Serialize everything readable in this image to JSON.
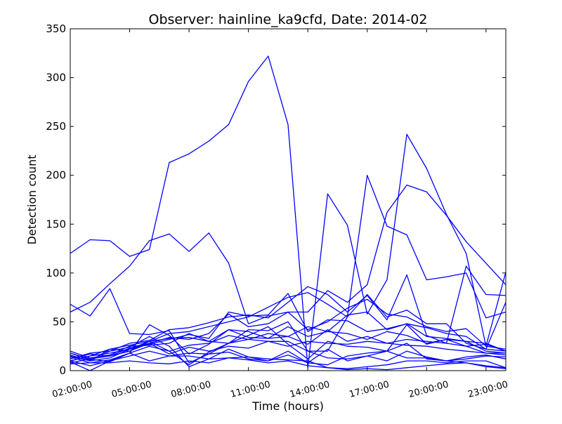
{
  "chart_data": {
    "type": "line",
    "title": "Observer: hainline_ka9cfd, Date: 2014-02",
    "xlabel": "Time (hours)",
    "ylabel": "Detection count",
    "x_tick_labels": [
      "02:00:00",
      "05:00:00",
      "08:00:00",
      "11:00:00",
      "14:00:00",
      "17:00:00",
      "20:00:00",
      "23:00:00"
    ],
    "x_tick_values": [
      2,
      5,
      8,
      11,
      14,
      17,
      20,
      23
    ],
    "xlim": [
      2,
      24
    ],
    "ylim": [
      0,
      350
    ],
    "y_ticks": [
      0,
      50,
      100,
      150,
      200,
      250,
      300,
      350
    ],
    "x": [
      2,
      3,
      4,
      5,
      6,
      7,
      8,
      9,
      10,
      11,
      12,
      13,
      14,
      15,
      16,
      17,
      18,
      19,
      20,
      21,
      22,
      23,
      24
    ],
    "series_color": "#0000ff",
    "series": [
      {
        "values": [
          120,
          134,
          133,
          117,
          124,
          213,
          222,
          235,
          252,
          296,
          322,
          252,
          3,
          181,
          149,
          58,
          93,
          242,
          207,
          160,
          120,
          25,
          101
        ]
      },
      {
        "values": [
          60,
          70,
          89,
          107,
          133,
          140,
          122,
          141,
          110,
          48,
          56,
          60,
          60,
          82,
          70,
          88,
          162,
          190,
          183,
          159,
          132,
          110,
          88
        ]
      },
      {
        "values": [
          68,
          56,
          84,
          38,
          37,
          41,
          8,
          17,
          28,
          42,
          41,
          50,
          20,
          20,
          55,
          200,
          148,
          139,
          93,
          96,
          100,
          54,
          60
        ]
      },
      {
        "values": [
          18,
          11,
          20,
          28,
          31,
          42,
          44,
          49,
          55,
          57,
          54,
          70,
          86,
          78,
          60,
          77,
          52,
          98,
          36,
          28,
          107,
          78,
          77
        ]
      },
      {
        "values": [
          15,
          10,
          22,
          26,
          30,
          38,
          40,
          45,
          50,
          55,
          65,
          75,
          80,
          68,
          55,
          78,
          55,
          62,
          48,
          48,
          28,
          22,
          70
        ]
      },
      {
        "values": [
          12,
          17,
          15,
          23,
          28,
          34,
          32,
          38,
          58,
          45,
          48,
          60,
          42,
          50,
          64,
          73,
          58,
          55,
          45,
          40,
          43,
          25,
          22
        ]
      },
      {
        "values": [
          10,
          15,
          18,
          22,
          27,
          32,
          37,
          33,
          60,
          56,
          57,
          79,
          40,
          52,
          51,
          40,
          43,
          48,
          44,
          38,
          35,
          22,
          20
        ]
      },
      {
        "values": [
          8,
          12,
          15,
          20,
          30,
          33,
          34,
          30,
          42,
          34,
          33,
          45,
          35,
          40,
          57,
          60,
          42,
          48,
          35,
          33,
          30,
          20,
          18
        ]
      },
      {
        "values": [
          14,
          8,
          11,
          18,
          47,
          36,
          17,
          27,
          42,
          40,
          33,
          35,
          27,
          42,
          30,
          35,
          28,
          32,
          30,
          28,
          25,
          18,
          18
        ]
      },
      {
        "values": [
          18,
          12,
          9,
          18,
          25,
          20,
          26,
          28,
          36,
          32,
          38,
          35,
          45,
          40,
          38,
          32,
          40,
          36,
          28,
          32,
          30,
          28,
          20
        ]
      },
      {
        "values": [
          20,
          13,
          16,
          25,
          26,
          28,
          38,
          30,
          28,
          32,
          30,
          25,
          30,
          28,
          27,
          30,
          28,
          26,
          25,
          22,
          20,
          18,
          16
        ]
      },
      {
        "values": [
          16,
          10,
          13,
          22,
          30,
          20,
          6,
          19,
          28,
          36,
          45,
          27,
          12,
          30,
          25,
          24,
          20,
          47,
          27,
          32,
          25,
          27,
          20
        ]
      },
      {
        "values": [
          12,
          18,
          20,
          24,
          35,
          25,
          4,
          12,
          22,
          14,
          10,
          16,
          8,
          22,
          10,
          15,
          10,
          20,
          14,
          10,
          14,
          16,
          12
        ]
      },
      {
        "values": [
          10,
          15,
          22,
          20,
          28,
          17,
          24,
          20,
          25,
          23,
          30,
          30,
          20,
          13,
          12,
          15,
          20,
          13,
          13,
          10,
          12,
          15,
          14
        ]
      },
      {
        "values": [
          10,
          5,
          10,
          15,
          20,
          15,
          18,
          17,
          19,
          12,
          10,
          20,
          8,
          6,
          15,
          18,
          20,
          28,
          12,
          10,
          8,
          5,
          3
        ]
      },
      {
        "values": [
          9,
          0,
          10,
          18,
          10,
          15,
          15,
          12,
          13,
          14,
          12,
          11,
          10,
          3,
          2,
          4,
          6,
          10,
          10,
          8,
          10,
          10,
          3
        ]
      },
      {
        "values": [
          7,
          8,
          8,
          10,
          8,
          7,
          10,
          8,
          13,
          11,
          8,
          10,
          5,
          3,
          1,
          2,
          1,
          3,
          5,
          7,
          8,
          4,
          2
        ]
      }
    ]
  }
}
